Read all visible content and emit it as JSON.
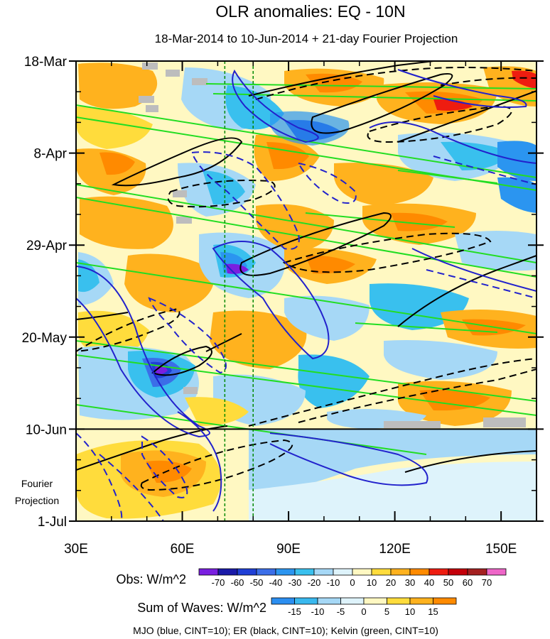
{
  "chart_data": {
    "type": "heatmap",
    "title": "OLR anomalies: EQ - 10N",
    "subtitle": "18-Mar-2014 to 10-Jun-2014 + 21-day Fourier Projection",
    "x_tick_labels": [
      "30E",
      "60E",
      "90E",
      "120E",
      "150E"
    ],
    "x_ticks": [
      30,
      60,
      90,
      120,
      150
    ],
    "xlim": [
      30,
      160
    ],
    "y_tick_labels": [
      "18-Mar",
      "8-Apr",
      "29-Apr",
      "20-May",
      "10-Jun",
      "1-Jul"
    ],
    "y_ticks_day": [
      0,
      21,
      42,
      63,
      84,
      105
    ],
    "ylim_day": [
      0,
      105
    ],
    "projection_label": [
      "Fourier",
      "Projection"
    ],
    "reference_longitudes": [
      72,
      80
    ],
    "obs_colorbar": {
      "label": "Obs: W/m^2",
      "levels": [
        "-70",
        "-60",
        "-50",
        "-40",
        "-30",
        "-20",
        "-10",
        "0",
        "10",
        "20",
        "30",
        "40",
        "50",
        "60",
        "70"
      ],
      "colors": [
        "#7a1fe0",
        "#1a1aa8",
        "#1f3fd6",
        "#3b6ee8",
        "#2b95f0",
        "#39c0ee",
        "#a6d8f6",
        "#def3fb",
        "#fff8c2",
        "#ffdc3c",
        "#ffb21e",
        "#ff8a00",
        "#ee1c10",
        "#c4000a",
        "#a42020",
        "#ee66c8"
      ]
    },
    "waves_colorbar": {
      "label": "Sum of Waves: W/m^2",
      "levels": [
        "-15",
        "-10",
        "-5",
        "0",
        "5",
        "10",
        "15"
      ],
      "colors": [
        "#2b8ef0",
        "#39b8ee",
        "#a6d8f6",
        "#def3fb",
        "#fff8c2",
        "#ffdc3c",
        "#ffb21e",
        "#ff8a00"
      ]
    },
    "contour_legend": "MJO (blue, CINT=10); ER (black, CINT=10); Kelvin (green, CINT=10)",
    "contour_colors": {
      "mjo": "#2222cc",
      "er": "#000000",
      "kelvin": "#22dd22",
      "reference_lines": "#008800"
    }
  }
}
